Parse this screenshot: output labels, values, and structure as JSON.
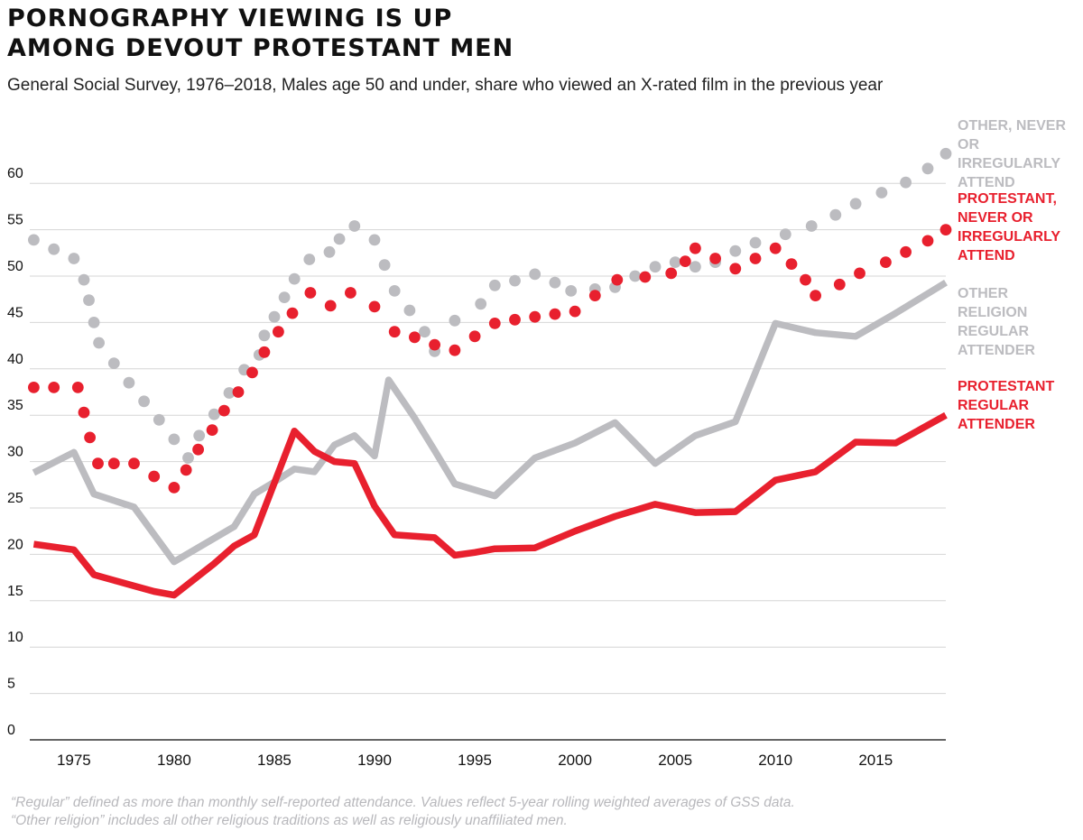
{
  "title_lines": [
    "PORNOGRAPHY VIEWING IS UP",
    "AMONG DEVOUT PROTESTANT MEN"
  ],
  "subtitle": "General Social Survey, 1976–2018, Males age 50 and under, share who viewed an X-rated film in the previous year",
  "notes": [
    "“Regular” defined as more than monthly self-reported attendance. Values reflect 5-year rolling weighted averages of GSS data.",
    "“Other religion” includes all other religious traditions as well as religiously unaffiliated men."
  ],
  "colors": {
    "gray": "#bcbcc0",
    "red": "#e8202e",
    "gridline": "#d6d6d6",
    "text": "#111111"
  },
  "chart_data": {
    "type": "line",
    "xlim": [
      1972.8,
      2018.5
    ],
    "ylim": [
      0,
      65
    ],
    "x_ticks": [
      1975,
      1980,
      1985,
      1990,
      1995,
      2000,
      2005,
      2010,
      2015
    ],
    "y_ticks": [
      0,
      5,
      10,
      15,
      20,
      25,
      30,
      35,
      40,
      45,
      50,
      55,
      60
    ],
    "grid": true,
    "series": [
      {
        "name": "OTHER, NEVER OR IRREGULARLY ATTEND",
        "style": "dotted",
        "color": "gray",
        "points": [
          [
            1973,
            53.9
          ],
          [
            1974,
            52.9
          ],
          [
            1975,
            51.9
          ],
          [
            1975.5,
            49.6
          ],
          [
            1975.75,
            47.4
          ],
          [
            1976,
            45
          ],
          [
            1976.25,
            42.8
          ],
          [
            1977,
            40.6
          ],
          [
            1977.75,
            38.5
          ],
          [
            1978.5,
            36.5
          ],
          [
            1979.25,
            34.5
          ],
          [
            1980,
            32.4
          ],
          [
            1980.7,
            30.4
          ],
          [
            1981.25,
            32.8
          ],
          [
            1982,
            35.1
          ],
          [
            1982.75,
            37.4
          ],
          [
            1983.5,
            39.9
          ],
          [
            1984.25,
            41.5
          ],
          [
            1984.5,
            43.6
          ],
          [
            1985,
            45.6
          ],
          [
            1985.5,
            47.7
          ],
          [
            1986,
            49.7
          ],
          [
            1986.75,
            51.8
          ],
          [
            1987.75,
            52.6
          ],
          [
            1988.25,
            54
          ],
          [
            1989,
            55.4
          ],
          [
            1990,
            53.9
          ],
          [
            1990.5,
            51.2
          ],
          [
            1991,
            48.4
          ],
          [
            1991.75,
            46.3
          ],
          [
            1992.5,
            44
          ],
          [
            1993,
            41.9
          ],
          [
            1994,
            45.2
          ],
          [
            1995.3,
            47
          ],
          [
            1996,
            49
          ],
          [
            1997,
            49.5
          ],
          [
            1998,
            50.2
          ],
          [
            1999,
            49.3
          ],
          [
            1999.8,
            48.4
          ],
          [
            2001,
            48.6
          ],
          [
            2002,
            48.8
          ],
          [
            2003,
            50
          ],
          [
            2004,
            51
          ],
          [
            2005,
            51.5
          ],
          [
            2006,
            51
          ],
          [
            2007,
            51.5
          ],
          [
            2008,
            52.7
          ],
          [
            2009,
            53.6
          ],
          [
            2010.5,
            54.5
          ],
          [
            2011.8,
            55.4
          ],
          [
            2013,
            56.6
          ],
          [
            2014,
            57.8
          ],
          [
            2015.3,
            59
          ],
          [
            2016.5,
            60.1
          ],
          [
            2017.6,
            61.6
          ],
          [
            2018.5,
            63.2
          ]
        ]
      },
      {
        "name": "PROTESTANT, NEVER OR IRREGULARLY ATTEND",
        "style": "dotted",
        "color": "red",
        "points": [
          [
            1973,
            38
          ],
          [
            1974,
            38
          ],
          [
            1975.2,
            38
          ],
          [
            1975.5,
            35.3
          ],
          [
            1975.8,
            32.6
          ],
          [
            1976.2,
            29.8
          ],
          [
            1977,
            29.8
          ],
          [
            1978,
            29.8
          ],
          [
            1979,
            28.4
          ],
          [
            1980,
            27.2
          ],
          [
            1980.6,
            29.1
          ],
          [
            1981.2,
            31.3
          ],
          [
            1981.9,
            33.4
          ],
          [
            1982.5,
            35.5
          ],
          [
            1983.2,
            37.5
          ],
          [
            1983.9,
            39.6
          ],
          [
            1984.5,
            41.8
          ],
          [
            1985.2,
            44
          ],
          [
            1985.9,
            46
          ],
          [
            1986.8,
            48.2
          ],
          [
            1987.8,
            46.8
          ],
          [
            1988.8,
            48.2
          ],
          [
            1990,
            46.7
          ],
          [
            1991,
            44
          ],
          [
            1992,
            43.4
          ],
          [
            1993,
            42.6
          ],
          [
            1994,
            42
          ],
          [
            1995,
            43.5
          ],
          [
            1996,
            44.9
          ],
          [
            1997,
            45.3
          ],
          [
            1998,
            45.6
          ],
          [
            1999,
            45.9
          ],
          [
            2000,
            46.2
          ],
          [
            2001,
            47.9
          ],
          [
            2002.1,
            49.6
          ],
          [
            2003.5,
            49.9
          ],
          [
            2004.8,
            50.3
          ],
          [
            2005.5,
            51.6
          ],
          [
            2006,
            53
          ],
          [
            2007,
            51.9
          ],
          [
            2008,
            50.8
          ],
          [
            2009,
            51.9
          ],
          [
            2010,
            53
          ],
          [
            2010.8,
            51.3
          ],
          [
            2011.5,
            49.6
          ],
          [
            2012,
            47.9
          ],
          [
            2013.2,
            49.1
          ],
          [
            2014.2,
            50.3
          ],
          [
            2015.5,
            51.5
          ],
          [
            2016.5,
            52.6
          ],
          [
            2017.6,
            53.8
          ],
          [
            2018.5,
            55
          ]
        ]
      },
      {
        "name": "OTHER RELIGION REGULAR ATTENDER",
        "style": "solid",
        "color": "gray",
        "points": [
          [
            1973,
            28.8
          ],
          [
            1975,
            31
          ],
          [
            1976,
            26.5
          ],
          [
            1978,
            25.1
          ],
          [
            1980,
            19.2
          ],
          [
            1983,
            23
          ],
          [
            1984,
            26.5
          ],
          [
            1985,
            27.8
          ],
          [
            1986,
            29.2
          ],
          [
            1987,
            28.9
          ],
          [
            1988,
            31.8
          ],
          [
            1989,
            32.8
          ],
          [
            1990,
            30.6
          ],
          [
            1990.7,
            38.8
          ],
          [
            1992,
            34.7
          ],
          [
            1993,
            31.2
          ],
          [
            1994,
            27.6
          ],
          [
            1996,
            26.3
          ],
          [
            1998,
            30.4
          ],
          [
            2000,
            32
          ],
          [
            2002,
            34.2
          ],
          [
            2004,
            29.8
          ],
          [
            2006,
            32.8
          ],
          [
            2008,
            34.3
          ],
          [
            2010,
            44.9
          ],
          [
            2012,
            43.9
          ],
          [
            2014,
            43.5
          ],
          [
            2016,
            46
          ],
          [
            2018.5,
            49.3
          ]
        ]
      },
      {
        "name": "PROTESTANT REGULAR ATTENDER",
        "style": "solid",
        "color": "red",
        "points": [
          [
            1973,
            21.1
          ],
          [
            1975,
            20.5
          ],
          [
            1976,
            17.8
          ],
          [
            1977,
            17.2
          ],
          [
            1978,
            16.6
          ],
          [
            1979,
            16
          ],
          [
            1980,
            15.6
          ],
          [
            1982,
            19
          ],
          [
            1983,
            20.9
          ],
          [
            1984,
            22.1
          ],
          [
            1986,
            33.3
          ],
          [
            1987,
            31.1
          ],
          [
            1988,
            30
          ],
          [
            1989,
            29.8
          ],
          [
            1990,
            25.2
          ],
          [
            1991,
            22.1
          ],
          [
            1993,
            21.8
          ],
          [
            1994,
            19.9
          ],
          [
            1995,
            20.2
          ],
          [
            1996,
            20.6
          ],
          [
            1998,
            20.7
          ],
          [
            2000,
            22.5
          ],
          [
            2002,
            24.1
          ],
          [
            2004,
            25.4
          ],
          [
            2006,
            24.5
          ],
          [
            2008,
            24.6
          ],
          [
            2010,
            28
          ],
          [
            2012,
            28.9
          ],
          [
            2014,
            32.1
          ],
          [
            2016,
            32
          ],
          [
            2018.5,
            35
          ]
        ]
      }
    ],
    "labels": [
      {
        "text": "OTHER, NEVER\nOR IRREGULARLY\nATTEND",
        "color": "gray"
      },
      {
        "text": "PROTESTANT,\nNEVER OR\nIRREGULARLY\nATTEND",
        "color": "red"
      },
      {
        "text": "OTHER\nRELIGION\nREGULAR\nATTENDER",
        "color": "gray"
      },
      {
        "text": "PROTESTANT\nREGULAR\nATTENDER",
        "color": "red"
      }
    ]
  }
}
